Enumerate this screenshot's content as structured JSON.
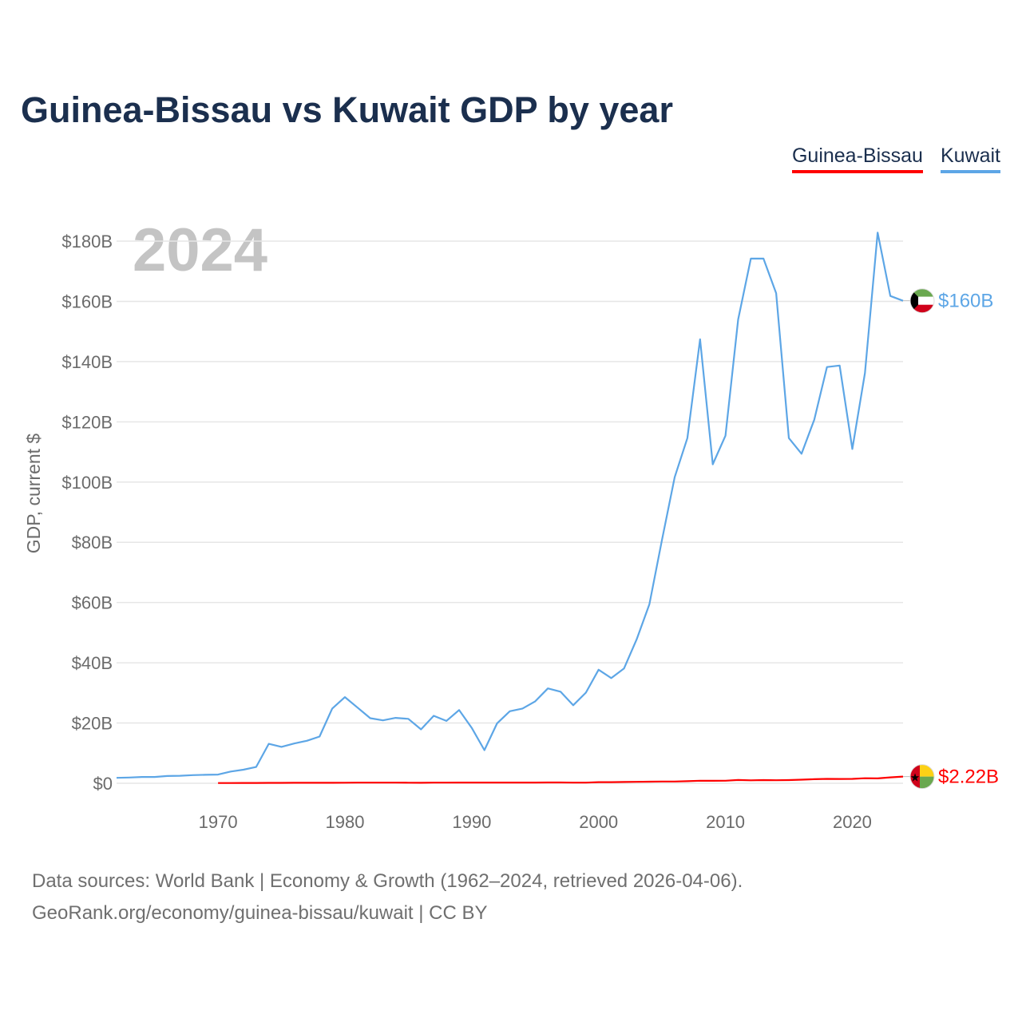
{
  "colors": {
    "title": "#1b2f4e",
    "guinea_bissau": "#ff0000",
    "kuwait": "#5da6e6",
    "year": "#c4c4c4"
  },
  "chart_data": {
    "type": "line",
    "title": "Guinea-Bissau vs Kuwait GDP by year",
    "ylabel": "GDP, current $",
    "xlabel": "",
    "year_label": "2024",
    "xlim": [
      1962,
      2024
    ],
    "ylim": [
      0,
      185
    ],
    "x_ticks": [
      1970,
      1980,
      1990,
      2000,
      2010,
      2020
    ],
    "y_ticks": [
      0,
      20,
      40,
      60,
      80,
      100,
      120,
      140,
      160,
      180
    ],
    "y_tick_labels": [
      "$0",
      "$20B",
      "$40B",
      "$60B",
      "$80B",
      "$100B",
      "$120B",
      "$140B",
      "$160B",
      "$180B"
    ],
    "series": [
      {
        "name": "Guinea-Bissau",
        "color": "#ff0000",
        "end_label": "$2.22B",
        "flag": "guinea-bissau-flag-icon",
        "x": [
          1970,
          1971,
          1972,
          1973,
          1974,
          1975,
          1976,
          1977,
          1978,
          1979,
          1980,
          1981,
          1982,
          1983,
          1984,
          1985,
          1986,
          1987,
          1988,
          1989,
          1990,
          1991,
          1992,
          1993,
          1994,
          1995,
          1996,
          1997,
          1998,
          1999,
          2000,
          2001,
          2002,
          2003,
          2004,
          2005,
          2006,
          2007,
          2008,
          2009,
          2010,
          2011,
          2012,
          2013,
          2014,
          2015,
          2016,
          2017,
          2018,
          2019,
          2020,
          2021,
          2022,
          2023,
          2024
        ],
        "values": [
          0.08,
          0.09,
          0.1,
          0.11,
          0.13,
          0.14,
          0.15,
          0.16,
          0.17,
          0.17,
          0.18,
          0.2,
          0.22,
          0.22,
          0.2,
          0.18,
          0.16,
          0.2,
          0.22,
          0.24,
          0.25,
          0.24,
          0.23,
          0.24,
          0.24,
          0.25,
          0.27,
          0.26,
          0.2,
          0.22,
          0.37,
          0.37,
          0.42,
          0.48,
          0.53,
          0.59,
          0.59,
          0.7,
          0.86,
          0.83,
          0.85,
          1.1,
          0.99,
          1.05,
          1.02,
          1.05,
          1.18,
          1.35,
          1.46,
          1.42,
          1.47,
          1.66,
          1.61,
          1.96,
          2.22
        ]
      },
      {
        "name": "Kuwait",
        "color": "#5da6e6",
        "end_label": "$160B",
        "flag": "kuwait-flag-icon",
        "x": [
          1962,
          1963,
          1964,
          1965,
          1966,
          1967,
          1968,
          1969,
          1970,
          1971,
          1972,
          1973,
          1974,
          1975,
          1976,
          1977,
          1978,
          1979,
          1980,
          1981,
          1982,
          1983,
          1984,
          1985,
          1986,
          1987,
          1988,
          1989,
          1990,
          1991,
          1992,
          1993,
          1994,
          1995,
          1996,
          1997,
          1998,
          1999,
          2000,
          2001,
          2002,
          2003,
          2004,
          2005,
          2006,
          2007,
          2008,
          2009,
          2010,
          2011,
          2012,
          2013,
          2014,
          2015,
          2016,
          2017,
          2018,
          2019,
          2020,
          2021,
          2022,
          2023,
          2024
        ],
        "values": [
          1.8,
          1.9,
          2.1,
          2.1,
          2.4,
          2.5,
          2.7,
          2.8,
          2.9,
          3.9,
          4.5,
          5.4,
          13.1,
          12.1,
          13.2,
          14.1,
          15.5,
          24.8,
          28.6,
          25.1,
          21.6,
          20.9,
          21.7,
          21.4,
          17.9,
          22.4,
          20.7,
          24.3,
          18.4,
          11.0,
          19.9,
          23.9,
          24.8,
          27.2,
          31.5,
          30.4,
          25.9,
          30.1,
          37.7,
          34.9,
          38.1,
          47.8,
          59.4,
          80.8,
          101.6,
          114.6,
          147.4,
          105.9,
          115.4,
          154.0,
          174.2,
          174.2,
          162.7,
          114.6,
          109.4,
          120.7,
          138.2,
          138.7,
          111.0,
          136.2,
          182.8,
          161.8,
          160.2
        ]
      }
    ]
  },
  "legend": {
    "items": [
      "Guinea-Bissau",
      "Kuwait"
    ]
  },
  "source": {
    "line1": "Data sources: World Bank | Economy & Growth (1962–2024, retrieved 2026-04-06).",
    "line2": "GeoRank.org/economy/guinea-bissau/kuwait | CC BY"
  }
}
